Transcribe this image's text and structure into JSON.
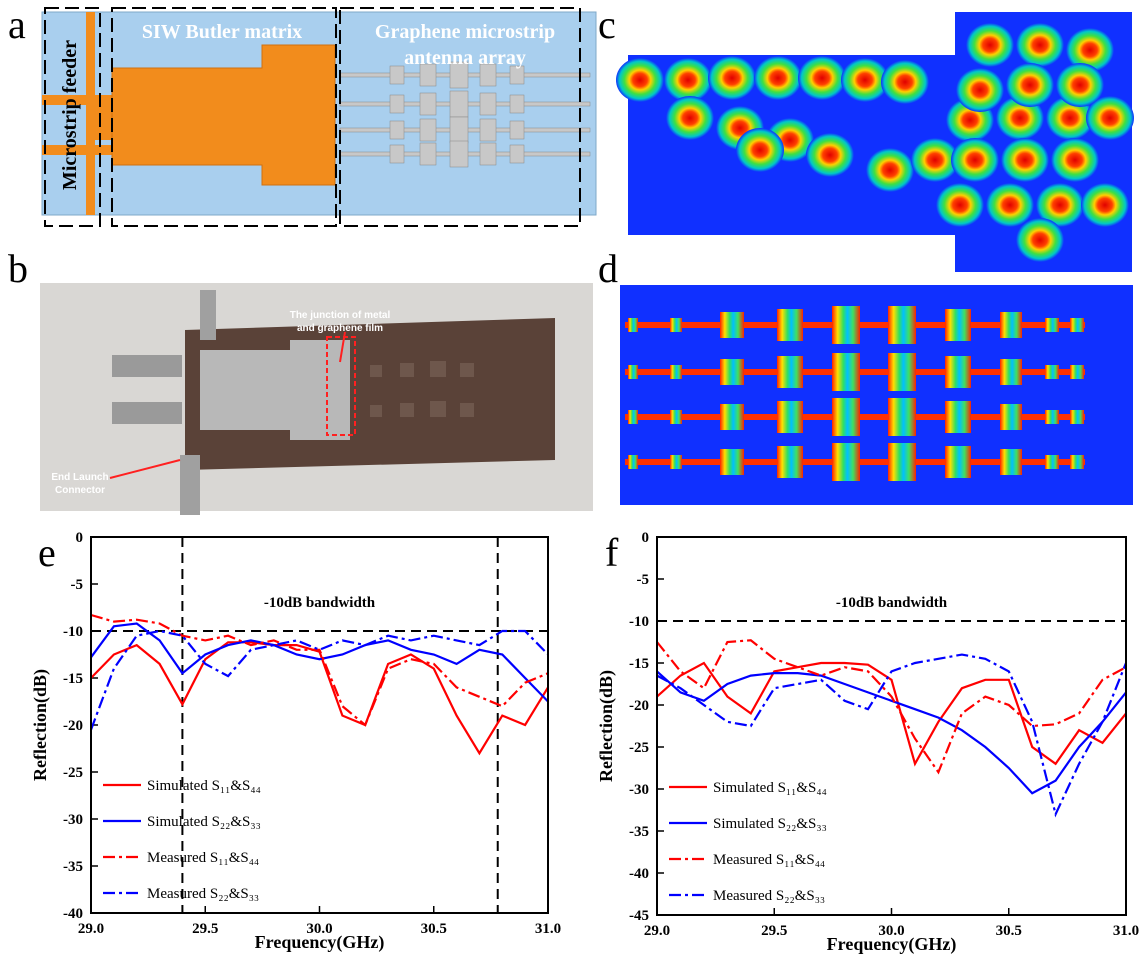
{
  "panel_labels": [
    "a",
    "b",
    "c",
    "d",
    "e",
    "f"
  ],
  "panel_a": {
    "matrix": "SIW Butler matrix",
    "array": [
      "Graphene microstrip",
      "antenna array"
    ],
    "feeder": "Microstrip feeder"
  },
  "panel_b": {
    "junction": [
      "The junction of metal",
      "and graphene film"
    ],
    "connector": [
      "End Launch",
      "Connector"
    ]
  },
  "chart_data": [
    {
      "type": "line",
      "xlabel": "Frequency(GHz)",
      "ylabel": "Reflection(dB)",
      "annotation": "-10dB  bandwidth",
      "x": [
        29.0,
        29.1,
        29.2,
        29.3,
        29.4,
        29.5,
        29.6,
        29.7,
        29.8,
        29.9,
        30.0,
        30.1,
        30.2,
        30.3,
        30.4,
        30.5,
        30.6,
        30.7,
        30.8,
        30.9,
        31.0
      ],
      "xlim": [
        29.0,
        31.0
      ],
      "xticks": [
        {
          "value": 29.0,
          "label": "29.0"
        },
        {
          "value": 29.5,
          "label": "29.5"
        },
        {
          "value": 30.0,
          "label": "30.0"
        },
        {
          "value": 30.5,
          "label": "30.5"
        },
        {
          "value": 31.0,
          "label": "31.0"
        }
      ],
      "ylim": [
        -40,
        0
      ],
      "yticks": [
        0,
        -5,
        -10,
        -15,
        -20,
        -25,
        -30,
        -35,
        -40
      ],
      "hlines": [
        -10
      ],
      "vlines": [
        29.4,
        30.78
      ],
      "legend": "lower left",
      "series": [
        {
          "name": "Simulated S₁₁&S₄₄",
          "color": "#ff0000",
          "style": "solid",
          "values": [
            -15,
            -12.5,
            -11.5,
            -13.5,
            -17.8,
            -13,
            -11.2,
            -11.2,
            -11.5,
            -11.5,
            -12.2,
            -19,
            -20,
            -13.5,
            -12.5,
            -14,
            -19,
            -23,
            -19,
            -20,
            -16
          ]
        },
        {
          "name": "Simulated S₂₂&S₃₃",
          "color": "#0000ff",
          "style": "solid",
          "values": [
            -12.8,
            -9.5,
            -9.2,
            -11,
            -14.5,
            -12.5,
            -11.5,
            -11,
            -11.5,
            -12.5,
            -13,
            -12.5,
            -11.5,
            -11,
            -12,
            -12.5,
            -13.5,
            -12,
            -12.5,
            -15,
            -17.5
          ]
        },
        {
          "name": "Measured S₁₁&S₄₄",
          "color": "#ff0000",
          "style": "dashdot",
          "values": [
            -8.3,
            -9,
            -8.8,
            -9.2,
            -10.5,
            -11,
            -10.5,
            -11.5,
            -11,
            -12,
            -12,
            -18,
            -20,
            -14,
            -13,
            -13.5,
            -16,
            -17,
            -18,
            -15.5,
            -14.5
          ]
        },
        {
          "name": "Measured S₂₂&S₃₃",
          "color": "#0000ff",
          "style": "dashdot",
          "values": [
            -20.5,
            -14,
            -10.5,
            -10,
            -10.5,
            -13.5,
            -14.8,
            -12,
            -11.5,
            -11,
            -12,
            -11,
            -11.5,
            -10.5,
            -11,
            -10.5,
            -11,
            -11.5,
            -10,
            -10,
            -12.5
          ]
        }
      ]
    },
    {
      "type": "line",
      "xlabel": "Frequency(GHz)",
      "ylabel": "Reflection(dB)",
      "annotation": "-10dB  bandwidth",
      "x": [
        29.0,
        29.1,
        29.2,
        29.3,
        29.4,
        29.5,
        29.6,
        29.7,
        29.8,
        29.9,
        30.0,
        30.1,
        30.2,
        30.3,
        30.4,
        30.5,
        30.6,
        30.7,
        30.8,
        30.9,
        31.0
      ],
      "xlim": [
        29.0,
        31.0
      ],
      "xticks": [
        {
          "value": 29.0,
          "label": "29.0"
        },
        {
          "value": 29.5,
          "label": "29.5"
        },
        {
          "value": 30.0,
          "label": "30.0"
        },
        {
          "value": 30.5,
          "label": "30.5"
        },
        {
          "value": 31.0,
          "label": "31.0"
        }
      ],
      "ylim": [
        -45,
        0
      ],
      "yticks": [
        0,
        -5,
        -10,
        -15,
        -20,
        -25,
        -30,
        -35,
        -40,
        -45
      ],
      "hlines": [
        -10
      ],
      "legend": "lower left",
      "series": [
        {
          "name": "Simulated S₁₁&S₄₄",
          "color": "#ff0000",
          "style": "solid",
          "values": [
            -19,
            -16.5,
            -15,
            -19,
            -21,
            -16,
            -15.5,
            -15,
            -15,
            -15.2,
            -17,
            -27,
            -22,
            -18,
            -17,
            -17,
            -25,
            -27,
            -23,
            -24.5,
            -21
          ]
        },
        {
          "name": "Simulated S₂₂&S₃₃",
          "color": "#0000ff",
          "style": "solid",
          "values": [
            -16,
            -18.5,
            -19.5,
            -17.5,
            -16.5,
            -16.2,
            -16.2,
            -16.5,
            -17.5,
            -18.5,
            -19.5,
            -20.5,
            -21.5,
            -23,
            -25,
            -27.5,
            -30.5,
            -29,
            -25,
            -22,
            -18.5
          ]
        },
        {
          "name": "Measured S₁₁&S₄₄",
          "color": "#ff0000",
          "style": "dashdot",
          "values": [
            -12.5,
            -16,
            -18,
            -12.5,
            -12.3,
            -14.5,
            -15.5,
            -16.5,
            -15.5,
            -16,
            -19,
            -24,
            -28,
            -21,
            -19,
            -20,
            -22.5,
            -22.3,
            -21,
            -17,
            -15.5
          ]
        },
        {
          "name": "Measured S₂₂&S₃₃",
          "color": "#0000ff",
          "style": "dashdot",
          "values": [
            -16.5,
            -18,
            -20,
            -22,
            -22.5,
            -18,
            -17.5,
            -17,
            -19.5,
            -20.5,
            -16,
            -15,
            -14.5,
            -14,
            -14.5,
            -16,
            -22,
            -33,
            -27,
            -22,
            -15
          ]
        }
      ]
    }
  ]
}
